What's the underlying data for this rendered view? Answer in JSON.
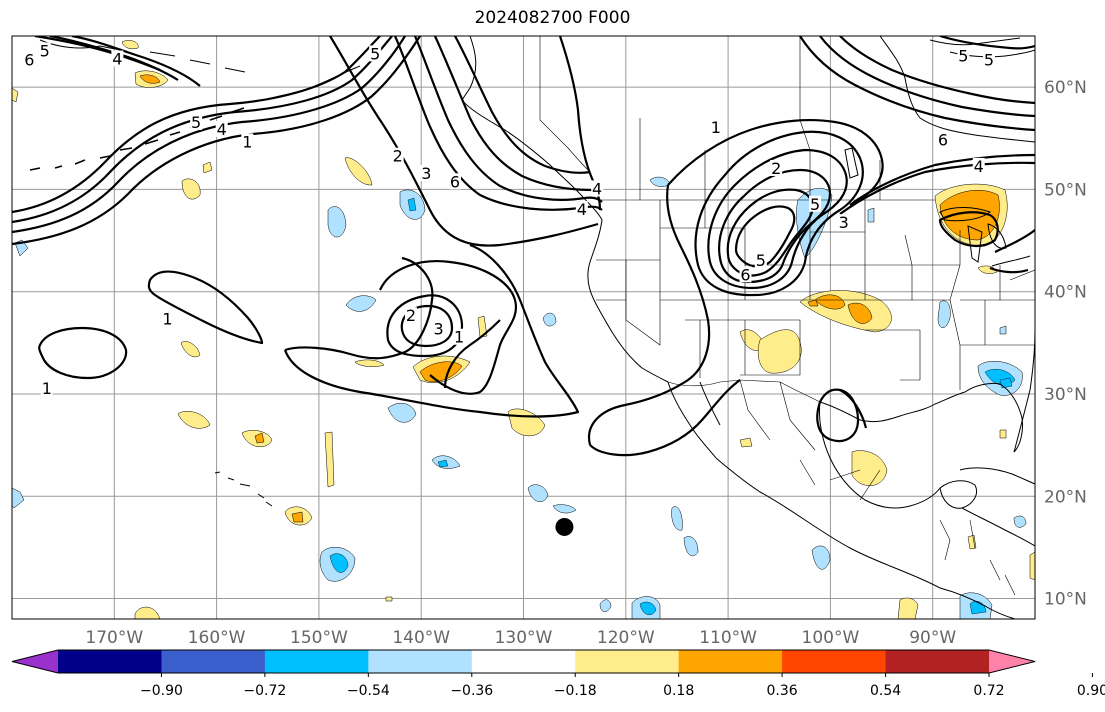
{
  "title": "2024082700 F000",
  "map": {
    "lon_range": [
      -180,
      -80
    ],
    "lat_range": [
      8,
      65
    ],
    "lat_ticks": [
      {
        "value": 60,
        "label": "60°N"
      },
      {
        "value": 50,
        "label": "50°N"
      },
      {
        "value": 40,
        "label": "40°N"
      },
      {
        "value": 30,
        "label": "30°N"
      },
      {
        "value": 20,
        "label": "20°N"
      },
      {
        "value": 10,
        "label": "10°N"
      }
    ],
    "lon_ticks": [
      {
        "value": -170,
        "label": "170°W"
      },
      {
        "value": -160,
        "label": "160°W"
      },
      {
        "value": -150,
        "label": "150°W"
      },
      {
        "value": -140,
        "label": "140°W"
      },
      {
        "value": -130,
        "label": "130°W"
      },
      {
        "value": -120,
        "label": "120°W"
      },
      {
        "value": -110,
        "label": "110°W"
      },
      {
        "value": -100,
        "label": "100°W"
      },
      {
        "value": -90,
        "label": "90°W"
      }
    ],
    "grid": true,
    "marker": {
      "lon": -126,
      "lat": 17,
      "color": "#000000"
    }
  },
  "contour_labels": [
    {
      "text": "5",
      "lon": -176.8,
      "lat": 63.5
    },
    {
      "text": "6",
      "lon": -178.3,
      "lat": 62.6
    },
    {
      "text": "4",
      "lon": -169.7,
      "lat": 62.7
    },
    {
      "text": "5",
      "lon": -162.0,
      "lat": 56.5
    },
    {
      "text": "4",
      "lon": -159.5,
      "lat": 55.8
    },
    {
      "text": "1",
      "lon": -157.0,
      "lat": 54.6
    },
    {
      "text": "5",
      "lon": -144.5,
      "lat": 63.2
    },
    {
      "text": "2",
      "lon": -142.3,
      "lat": 53.2
    },
    {
      "text": "3",
      "lon": -139.5,
      "lat": 51.5
    },
    {
      "text": "6",
      "lon": -136.7,
      "lat": 50.7
    },
    {
      "text": "4",
      "lon": -122.8,
      "lat": 50.0
    },
    {
      "text": "4",
      "lon": -124.3,
      "lat": 48.0
    },
    {
      "text": "1",
      "lon": -111.2,
      "lat": 56.0
    },
    {
      "text": "2",
      "lon": -105.3,
      "lat": 52.0
    },
    {
      "text": "5",
      "lon": -101.5,
      "lat": 48.5
    },
    {
      "text": "3",
      "lon": -98.7,
      "lat": 46.7
    },
    {
      "text": "5",
      "lon": -106.8,
      "lat": 43.0
    },
    {
      "text": "6",
      "lon": -108.3,
      "lat": 41.6
    },
    {
      "text": "6",
      "lon": -89.0,
      "lat": 54.8
    },
    {
      "text": "4",
      "lon": -85.5,
      "lat": 52.2
    },
    {
      "text": "5",
      "lon": -84.5,
      "lat": 62.6
    },
    {
      "text": "5",
      "lon": -87.0,
      "lat": 63.0
    },
    {
      "text": "2",
      "lon": -141.0,
      "lat": 37.6
    },
    {
      "text": "3",
      "lon": -138.3,
      "lat": 36.3
    },
    {
      "text": "1",
      "lon": -136.3,
      "lat": 35.5
    },
    {
      "text": "1",
      "lon": -164.8,
      "lat": 37.3
    },
    {
      "text": "1",
      "lon": -176.6,
      "lat": 30.5
    }
  ],
  "colorbar": {
    "colors": [
      "#9932cc",
      "#00008b",
      "#3a5fcd",
      "#00bfff",
      "#b0e2ff",
      "#ffffff",
      "#ffec8b",
      "#ffa500",
      "#ff4500",
      "#b22222",
      "#ff82ab"
    ],
    "tick_labels": [
      "−0.90",
      "−0.72",
      "−0.54",
      "−0.36",
      "−0.18",
      "0.18",
      "0.36",
      "0.54",
      "0.72",
      "0.90"
    ]
  }
}
